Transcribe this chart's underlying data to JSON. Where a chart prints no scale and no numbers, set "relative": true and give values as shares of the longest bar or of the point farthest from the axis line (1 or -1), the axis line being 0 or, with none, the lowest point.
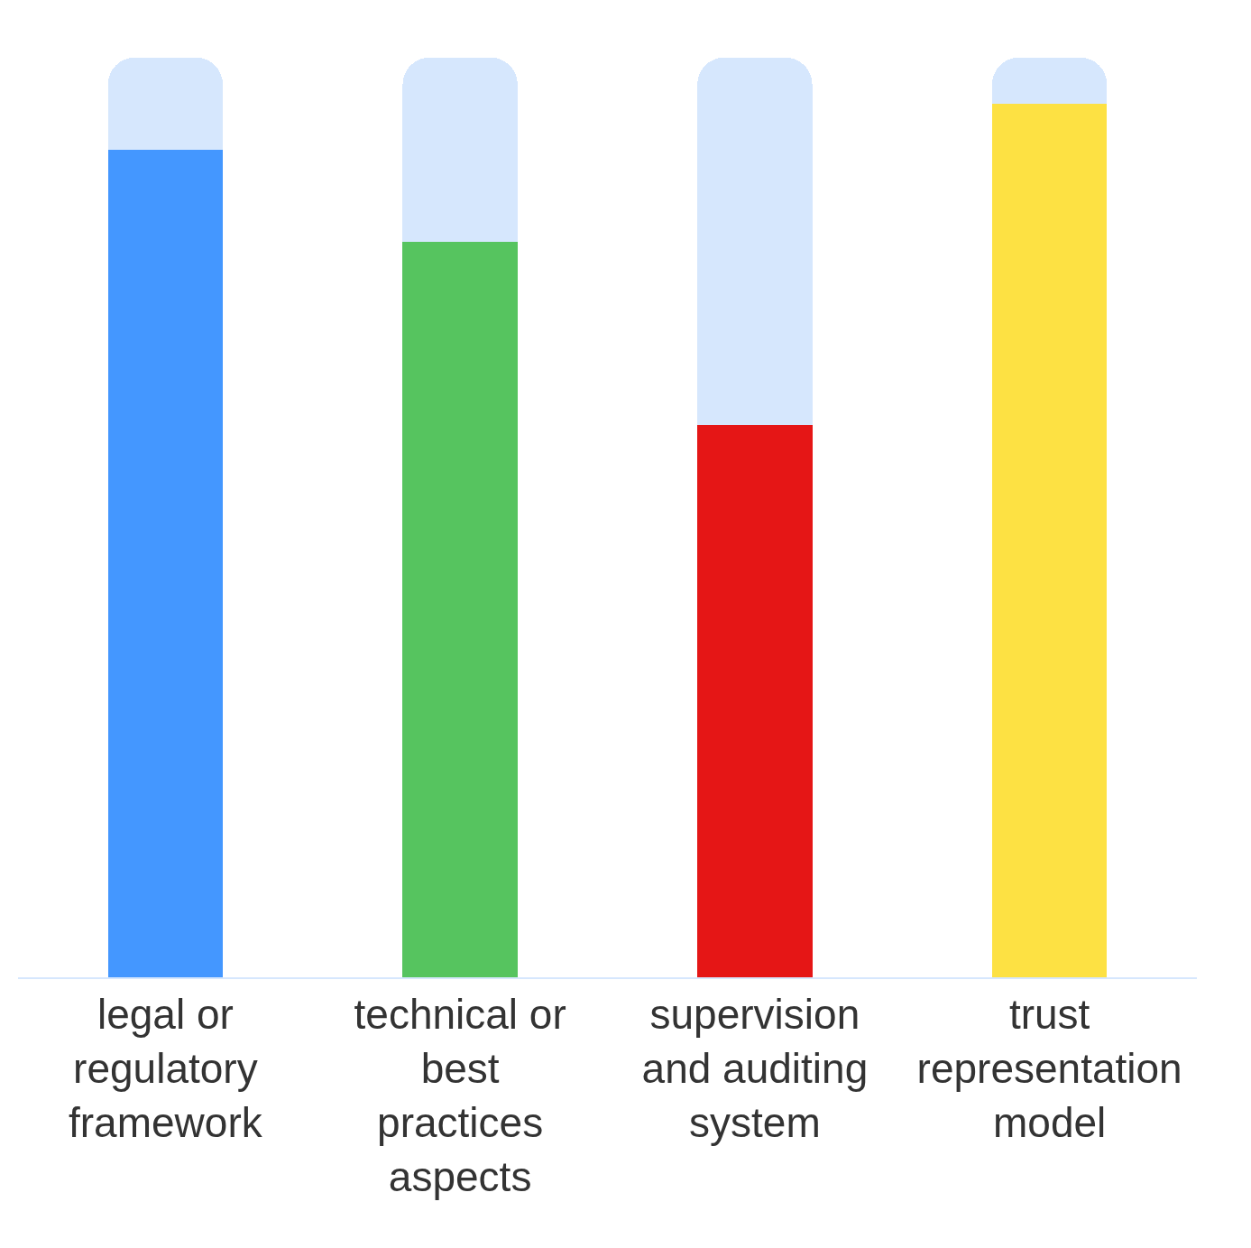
{
  "chart_data": {
    "type": "bar",
    "relative": true,
    "stacked": true,
    "categories": [
      "legal or regulatory framework",
      "technical or best practices aspects",
      "supervision and auditing system",
      "trust representation model"
    ],
    "series": [
      {
        "colors": [
          "#4497ff",
          "#56c45f",
          "#e51616",
          "#fde143"
        ],
        "values": [
          0.9,
          0.8,
          0.6,
          0.95
        ]
      },
      {
        "color": "#d6e7fd",
        "values": [
          0.1,
          0.2,
          0.4,
          0.05
        ]
      }
    ]
  }
}
